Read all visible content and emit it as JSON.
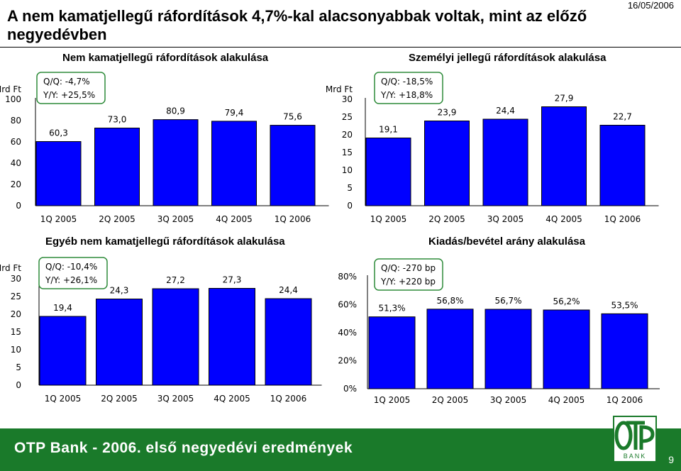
{
  "slide": {
    "title": "A nem kamatjellegű ráfordítások 4,7%-kal alacsonyabbak voltak, mint az előző negyedévben",
    "date": "16/05/2006",
    "footer_text": "OTP Bank - 2006. első negyedévi  eredmények",
    "logo_text": "OTP",
    "logo_subtext": "BANK",
    "page_number": "9"
  },
  "colors": {
    "bar": "#0000ff",
    "bar_outline": "#000000",
    "footer": "#1a7a2a",
    "note_border": "#2e8b3a"
  },
  "chart_data": [
    {
      "type": "bar",
      "title": "Nem kamatjellegű ráfordítások alakulása",
      "unit_label": "Mrd Ft",
      "categories": [
        "1Q 2005",
        "2Q 2005",
        "3Q 2005",
        "4Q 2005",
        "1Q 2006"
      ],
      "values": [
        60.3,
        73.0,
        80.9,
        79.4,
        75.6
      ],
      "value_labels": [
        "60,3",
        "73,0",
        "80,9",
        "79,4",
        "75,6"
      ],
      "ylim": [
        0,
        100
      ],
      "yticks": [
        0,
        20,
        40,
        60,
        80,
        100
      ],
      "note": [
        "Q/Q: -4,7%",
        "Y/Y: +25,5%"
      ]
    },
    {
      "type": "bar",
      "title": "Személyi jellegű ráfordítások alakulása",
      "unit_label": "Mrd Ft",
      "categories": [
        "1Q 2005",
        "2Q 2005",
        "3Q 2005",
        "4Q 2005",
        "1Q 2006"
      ],
      "values": [
        19.1,
        23.9,
        24.4,
        27.9,
        22.7
      ],
      "value_labels": [
        "19,1",
        "23,9",
        "24,4",
        "27,9",
        "22,7"
      ],
      "ylim": [
        0,
        30
      ],
      "yticks": [
        0,
        5,
        10,
        15,
        20,
        25,
        30
      ],
      "note": [
        "Q/Q: -18,5%",
        "Y/Y: +18,8%"
      ]
    },
    {
      "type": "bar",
      "title": "Egyéb nem kamatjellegű ráfordítások alakulása",
      "unit_label": "Mrd Ft",
      "categories": [
        "1Q 2005",
        "2Q 2005",
        "3Q 2005",
        "4Q 2005",
        "1Q 2006"
      ],
      "values": [
        19.4,
        24.3,
        27.2,
        27.3,
        24.4
      ],
      "value_labels": [
        "19,4",
        "24,3",
        "27,2",
        "27,3",
        "24,4"
      ],
      "ylim": [
        0,
        30
      ],
      "yticks": [
        0,
        5,
        10,
        15,
        20,
        25,
        30
      ],
      "note": [
        "Q/Q: -10,4%",
        "Y/Y: +26,1%"
      ]
    },
    {
      "type": "bar",
      "title": "Kiadás/bevétel arány alakulása",
      "unit_label": "",
      "categories": [
        "1Q 2005",
        "2Q 2005",
        "3Q 2005",
        "4Q 2005",
        "1Q 2006"
      ],
      "values": [
        51.3,
        56.8,
        56.7,
        56.2,
        53.5
      ],
      "value_labels": [
        "51,3%",
        "56,8%",
        "56,7%",
        "56,2%",
        "53,5%"
      ],
      "ylim": [
        0,
        80
      ],
      "yticks": [
        0,
        20,
        40,
        60,
        80
      ],
      "ytick_labels": [
        "0%",
        "20%",
        "40%",
        "60%",
        "80%"
      ],
      "note": [
        "Q/Q: -270 bp",
        "Y/Y: +220 bp"
      ]
    }
  ]
}
